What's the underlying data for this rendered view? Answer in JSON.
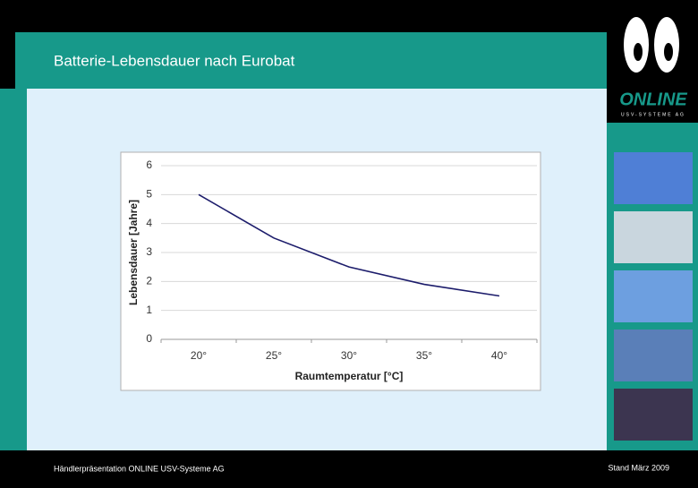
{
  "slide": {
    "title": "Batterie-Lebensdauer nach Eurobat",
    "footer_left": "Händlerpräsentation ONLINE USV-Systeme AG",
    "footer_right": "Stand März 2009",
    "logo": "ONLINE",
    "logo_sub": "USV-SYSTEME AG"
  },
  "chart_data": {
    "type": "line",
    "x_label": "Raumtemperatur [°C]",
    "y_label": "Lebensdauer [Jahre]",
    "categories": [
      "20°",
      "25°",
      "30°",
      "35°",
      "40°"
    ],
    "series": [
      {
        "name": "Lebensdauer",
        "color": "#1c1c6b",
        "values": [
          5,
          3.5,
          2.5,
          1.9,
          1.5
        ]
      }
    ],
    "ylim": [
      0,
      6
    ],
    "yticks": [
      0,
      1,
      2,
      3,
      4,
      5,
      6
    ],
    "grid": true
  }
}
